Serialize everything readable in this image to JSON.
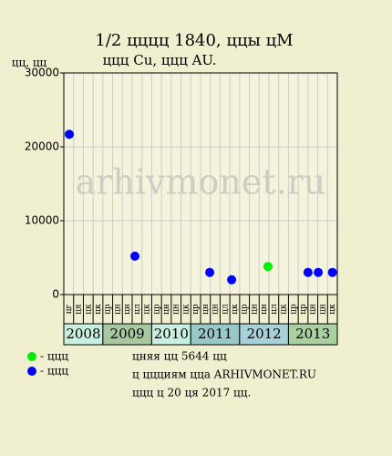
{
  "chart_data": {
    "type": "scatter",
    "title": "1/2 цццц 1840, ццы цМ",
    "subtitle": "ццц Cu, ццц AU.",
    "y_label": "цц, цц",
    "watermark": "arhivmonet.ru",
    "ylim": [
      0,
      30000
    ],
    "yticks": [
      0,
      10000,
      20000,
      30000
    ],
    "xlim": [
      0,
      28
    ],
    "grid": true,
    "years": [
      {
        "label": "2008",
        "color": "#c8f0e0",
        "columns": [
          "цг",
          "ця",
          "цк",
          "цк"
        ]
      },
      {
        "label": "2009",
        "color": "#a8c8a0",
        "columns": [
          "цр",
          "цн",
          "цн",
          "цл",
          "цк"
        ]
      },
      {
        "label": "2010",
        "color": "#c8f0e0",
        "columns": [
          "цр",
          "цн",
          "цн",
          "цк"
        ]
      },
      {
        "label": "2011",
        "color": "#98c8c8",
        "columns": [
          "цр",
          "цн",
          "цн",
          "цл",
          "цк"
        ]
      },
      {
        "label": "2012",
        "color": "#a8d0d8",
        "columns": [
          "цр",
          "цн",
          "цн",
          "цл",
          "цк"
        ]
      },
      {
        "label": "2013",
        "color": "#a8d0a0",
        "columns": [
          "цр",
          "цр",
          "цн",
          "цн",
          "цк"
        ]
      }
    ],
    "series": [
      {
        "name": "- ццц",
        "color": "#00ee00",
        "x": [
          20.9
        ],
        "values": [
          3800
        ]
      },
      {
        "name": "- ццц",
        "color": "#0000ff",
        "x": [
          0.56,
          7.28,
          14.94,
          17.18,
          25.0,
          26.05,
          27.5
        ],
        "values": [
          21700,
          5200,
          3000,
          2000,
          3000,
          3000,
          3000
        ]
      }
    ],
    "footer": [
      "цняя цц 5644 цц",
      "ц ццциям цца ARHIVMONET.RU",
      "ццц ц 20 ця 2017 цц."
    ]
  }
}
